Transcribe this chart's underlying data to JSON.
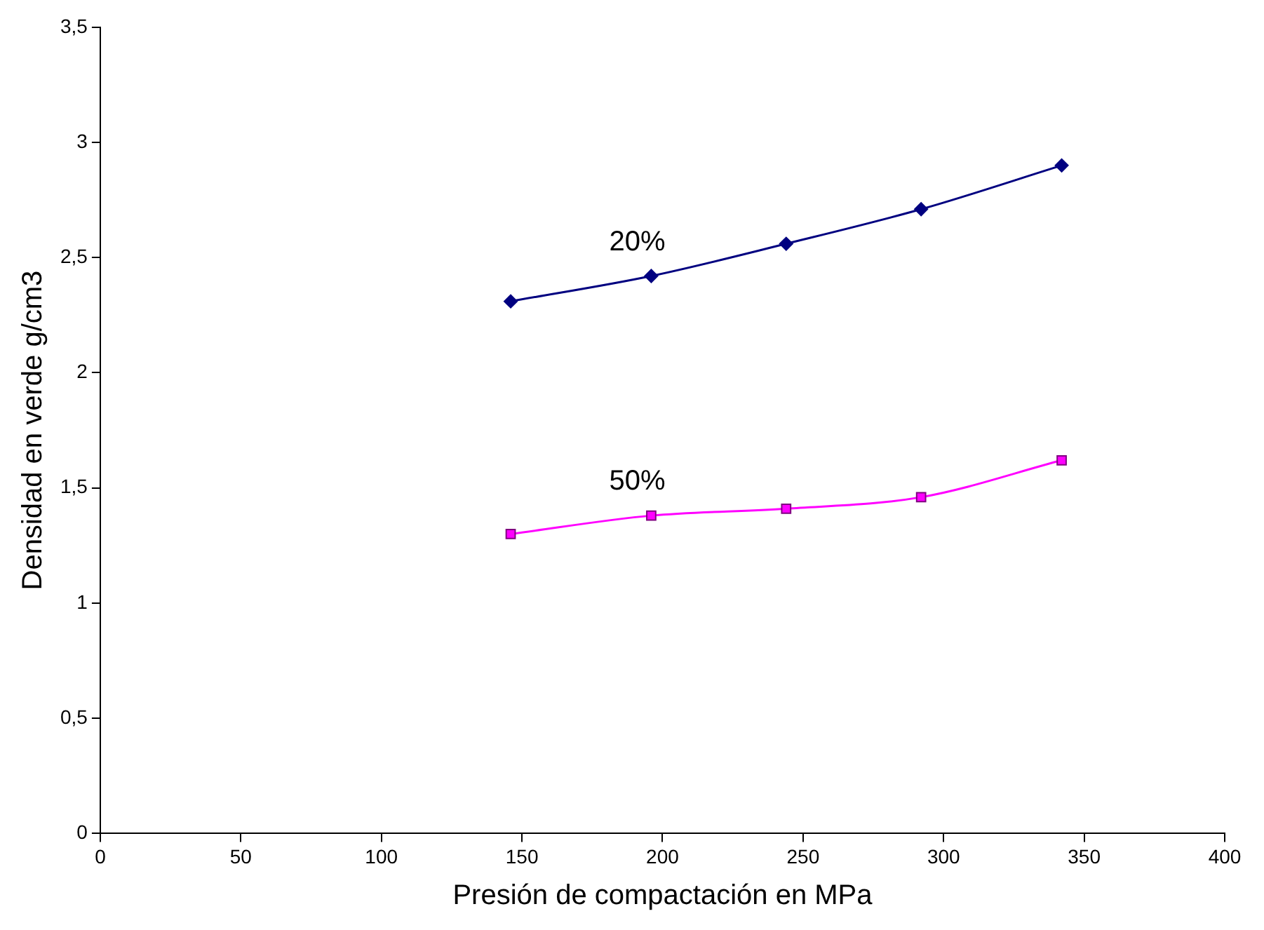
{
  "chart_data": {
    "type": "line",
    "xlabel": "Presión de compactación en MPa",
    "ylabel": "Densidad en verde g/cm3",
    "xlim": [
      0,
      400
    ],
    "xticks": [
      0,
      50,
      100,
      150,
      200,
      250,
      300,
      350,
      400
    ],
    "ylim": [
      0,
      3.5
    ],
    "yticks": [
      0,
      {
        "value": 0.5,
        "label": "0,5"
      },
      1,
      {
        "value": 1.5,
        "label": "1,5"
      },
      2,
      {
        "value": 2.5,
        "label": "2,5"
      },
      3,
      {
        "value": 3.5,
        "label": "3,5"
      }
    ],
    "grid": false,
    "legend": false,
    "series": [
      {
        "name": "20%",
        "color": "#000080",
        "marker": "diamond",
        "x": [
          146,
          196,
          244,
          292,
          342
        ],
        "values": [
          2.31,
          2.42,
          2.56,
          2.71,
          2.9
        ]
      },
      {
        "name": "50%",
        "color": "#ff00ff",
        "marker": "square",
        "x": [
          146,
          196,
          244,
          292,
          342
        ],
        "values": [
          1.3,
          1.38,
          1.41,
          1.46,
          1.62
        ]
      }
    ]
  }
}
